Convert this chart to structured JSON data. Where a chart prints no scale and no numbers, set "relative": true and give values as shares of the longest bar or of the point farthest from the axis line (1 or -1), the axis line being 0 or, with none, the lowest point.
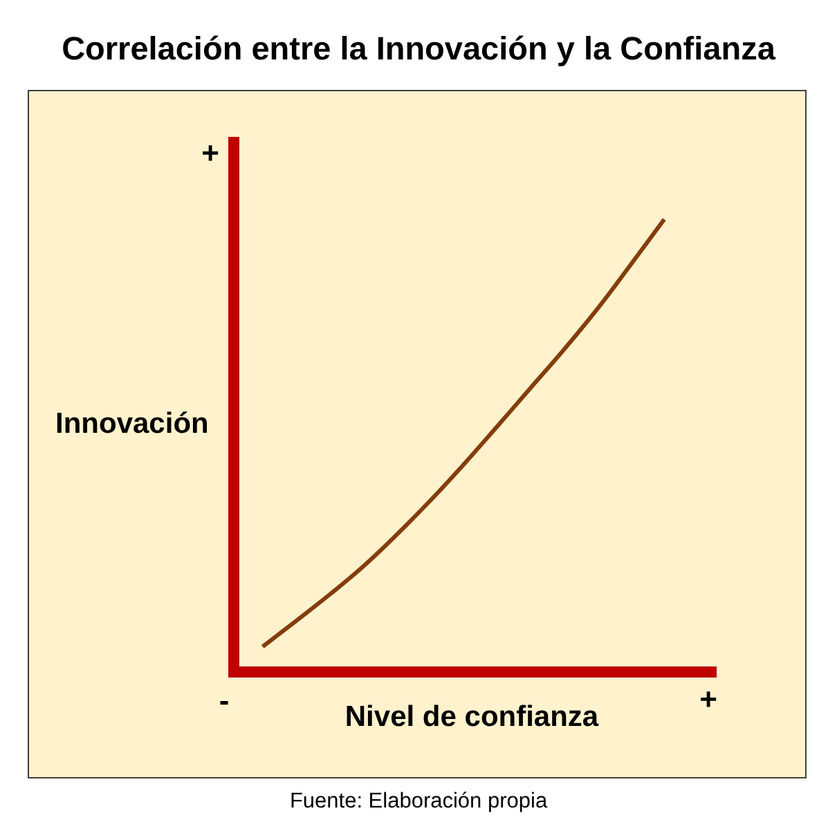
{
  "chart_data": {
    "type": "line",
    "title": "Correlación entre la Innovación y la Confianza",
    "xlabel": "Nivel de confianza",
    "ylabel": "Innovación",
    "relative": true,
    "categories": [
      null,
      null,
      null,
      null,
      null,
      null,
      null,
      null,
      null,
      null,
      null,
      null,
      null
    ],
    "series": [
      {
        "color": "#843c0c",
        "values": [
          0.056,
          0.113,
          0.171,
          0.233,
          0.303,
          0.378,
          0.458,
          0.542,
          0.627,
          0.712,
          0.802,
          0.9,
          1
        ]
      }
    ],
    "marker": "none",
    "line_style": "solid",
    "annotations": [
      "+",
      "-",
      "+",
      "Fuente: Elaboración propia"
    ]
  }
}
